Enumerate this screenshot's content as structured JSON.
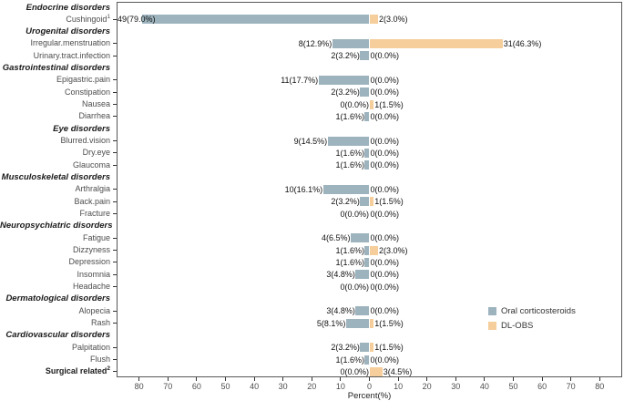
{
  "chart_data": {
    "type": "bar",
    "variant": "diverging-horizontal",
    "title": "",
    "xlabel": "Percent(%)",
    "unit": "percent",
    "x_tick_labels": [
      80,
      70,
      60,
      50,
      40,
      30,
      20,
      10,
      0,
      10,
      20,
      30,
      40,
      50,
      60,
      70,
      80
    ],
    "axis_range_each_side": [
      0,
      88
    ],
    "grid": "off",
    "legend_position": "right-inside",
    "legend": [
      {
        "name": "Oral corticosteroids",
        "color": "#9DB4BE",
        "side": "left"
      },
      {
        "name": "DL-OBS",
        "color": "#F5CE9B",
        "side": "right"
      }
    ],
    "rows": [
      {
        "kind": "header",
        "label": "Endocrine disorders"
      },
      {
        "kind": "item",
        "label": "Cushingoid",
        "sup": "1",
        "left": {
          "count": 49,
          "pct": 79.0,
          "label": "49(79.0%)"
        },
        "right": {
          "count": 2,
          "pct": 3.0,
          "label": "2(3.0%)"
        }
      },
      {
        "kind": "header",
        "label": "Urogenital disorders"
      },
      {
        "kind": "item",
        "label": "Irregular.menstruation",
        "left": {
          "count": 8,
          "pct": 12.9,
          "label": "8(12.9%)"
        },
        "right": {
          "count": 31,
          "pct": 46.3,
          "label": "31(46.3%)"
        }
      },
      {
        "kind": "item",
        "label": "Urinary.tract.infection",
        "left": {
          "count": 2,
          "pct": 3.2,
          "label": "2(3.2%)"
        },
        "right": {
          "count": 0,
          "pct": 0.0,
          "label": "0(0.0%)"
        }
      },
      {
        "kind": "header",
        "label": "Gastrointestinal disorders"
      },
      {
        "kind": "item",
        "label": "Epigastric.pain",
        "left": {
          "count": 11,
          "pct": 17.7,
          "label": "11(17.7%)"
        },
        "right": {
          "count": 0,
          "pct": 0.0,
          "label": "0(0.0%)"
        }
      },
      {
        "kind": "item",
        "label": "Constipation",
        "left": {
          "count": 2,
          "pct": 3.2,
          "label": "2(3.2%)"
        },
        "right": {
          "count": 0,
          "pct": 0.0,
          "label": "0(0.0%)"
        }
      },
      {
        "kind": "item",
        "label": "Nausea",
        "left": {
          "count": 0,
          "pct": 0.0,
          "label": "0(0.0%)"
        },
        "right": {
          "count": 1,
          "pct": 1.5,
          "label": "1(1.5%)"
        }
      },
      {
        "kind": "item",
        "label": "Diarrhea",
        "left": {
          "count": 1,
          "pct": 1.6,
          "label": "1(1.6%)"
        },
        "right": {
          "count": 0,
          "pct": 0.0,
          "label": "0(0.0%)"
        }
      },
      {
        "kind": "header",
        "label": "Eye disorders"
      },
      {
        "kind": "item",
        "label": "Blurred.vision",
        "left": {
          "count": 9,
          "pct": 14.5,
          "label": "9(14.5%)"
        },
        "right": {
          "count": 0,
          "pct": 0.0,
          "label": "0(0.0%)"
        }
      },
      {
        "kind": "item",
        "label": "Dry.eye",
        "left": {
          "count": 1,
          "pct": 1.6,
          "label": "1(1.6%)"
        },
        "right": {
          "count": 0,
          "pct": 0.0,
          "label": "0(0.0%)"
        }
      },
      {
        "kind": "item",
        "label": "Glaucoma",
        "left": {
          "count": 1,
          "pct": 1.6,
          "label": "1(1.6%)"
        },
        "right": {
          "count": 0,
          "pct": 0.0,
          "label": "0(0.0%)"
        }
      },
      {
        "kind": "header",
        "label": "Musculoskeletal disorders"
      },
      {
        "kind": "item",
        "label": "Arthralgia",
        "left": {
          "count": 10,
          "pct": 16.1,
          "label": "10(16.1%)"
        },
        "right": {
          "count": 0,
          "pct": 0.0,
          "label": "0(0.0%)"
        }
      },
      {
        "kind": "item",
        "label": "Back.pain",
        "left": {
          "count": 2,
          "pct": 3.2,
          "label": "2(3.2%)"
        },
        "right": {
          "count": 1,
          "pct": 1.5,
          "label": "1(1.5%)"
        }
      },
      {
        "kind": "item",
        "label": "Fracture",
        "left": {
          "count": 0,
          "pct": 0.0,
          "label": "0(0.0%)"
        },
        "right": {
          "count": 0,
          "pct": 0.0,
          "label": "0(0.0%)"
        }
      },
      {
        "kind": "header",
        "label": "Neuropsychiatric disorders"
      },
      {
        "kind": "item",
        "label": "Fatigue",
        "left": {
          "count": 4,
          "pct": 6.5,
          "label": "4(6.5%)"
        },
        "right": {
          "count": 0,
          "pct": 0.0,
          "label": "0(0.0%)"
        }
      },
      {
        "kind": "item",
        "label": "Dizzyness",
        "left": {
          "count": 1,
          "pct": 1.6,
          "label": "1(1.6%)"
        },
        "right": {
          "count": 2,
          "pct": 3.0,
          "label": "2(3.0%)"
        }
      },
      {
        "kind": "item",
        "label": "Depression",
        "left": {
          "count": 1,
          "pct": 1.6,
          "label": "1(1.6%)"
        },
        "right": {
          "count": 0,
          "pct": 0.0,
          "label": "0(0.0%)"
        }
      },
      {
        "kind": "item",
        "label": "Insomnia",
        "left": {
          "count": 3,
          "pct": 4.8,
          "label": "3(4.8%)"
        },
        "right": {
          "count": 0,
          "pct": 0.0,
          "label": "0(0.0%)"
        }
      },
      {
        "kind": "item",
        "label": "Headache",
        "left": {
          "count": 0,
          "pct": 0.0,
          "label": "0(0.0%)"
        },
        "right": {
          "count": 0,
          "pct": 0.0,
          "label": "0(0.0%)"
        }
      },
      {
        "kind": "header",
        "label": "Dermatological disorders"
      },
      {
        "kind": "item",
        "label": "Alopecia",
        "left": {
          "count": 3,
          "pct": 4.8,
          "label": "3(4.8%)"
        },
        "right": {
          "count": 0,
          "pct": 0.0,
          "label": "0(0.0%)"
        }
      },
      {
        "kind": "item",
        "label": "Rash",
        "left": {
          "count": 5,
          "pct": 8.1,
          "label": "5(8.1%)"
        },
        "right": {
          "count": 1,
          "pct": 1.5,
          "label": "1(1.5%)"
        }
      },
      {
        "kind": "header",
        "label": "Cardiovascular disorders"
      },
      {
        "kind": "item",
        "label": "Palpitation",
        "left": {
          "count": 2,
          "pct": 3.2,
          "label": "2(3.2%)"
        },
        "right": {
          "count": 1,
          "pct": 1.5,
          "label": "1(1.5%)"
        }
      },
      {
        "kind": "item",
        "label": "Flush",
        "left": {
          "count": 1,
          "pct": 1.6,
          "label": "1(1.6%)"
        },
        "right": {
          "count": 0,
          "pct": 0.0,
          "label": "0(0.0%)"
        }
      },
      {
        "kind": "item",
        "bold": true,
        "label": "Surgical related",
        "sup": "2",
        "left": {
          "count": 0,
          "pct": 0.0,
          "label": "0(0.0%)"
        },
        "right": {
          "count": 3,
          "pct": 4.5,
          "label": "3(4.5%)"
        }
      }
    ]
  }
}
